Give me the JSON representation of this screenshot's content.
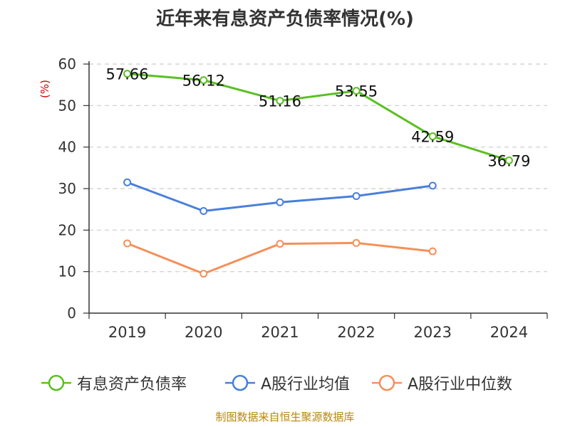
{
  "title": "近年来有息资产负债率情况(%)",
  "footer": "制图数据来自恒生聚源数据库",
  "chart_data": {
    "type": "line",
    "title": "近年来有息资产负债率情况(%)",
    "ylabel": "(%)",
    "ylim": [
      0,
      60
    ],
    "yticks": [
      0,
      10,
      20,
      30,
      40,
      50,
      60
    ],
    "grid": true,
    "legend_position": "bottom",
    "categories": [
      "2019",
      "2020",
      "2021",
      "2022",
      "2023",
      "2024"
    ],
    "series": [
      {
        "name": "有息资产负债率",
        "color": "#5ac021",
        "values": [
          57.66,
          56.12,
          51.16,
          53.55,
          42.59,
          36.79
        ],
        "labels": [
          "57.66",
          "56.12",
          "51.16",
          "53.55",
          "42.59",
          "36.79"
        ]
      },
      {
        "name": "A股行业均值",
        "color": "#4a7fd9",
        "values": [
          31.5,
          24.6,
          26.7,
          28.2,
          30.7,
          null
        ]
      },
      {
        "name": "A股行业中位数",
        "color": "#f4905a",
        "values": [
          16.8,
          9.5,
          16.7,
          16.9,
          14.9,
          null
        ]
      }
    ]
  }
}
